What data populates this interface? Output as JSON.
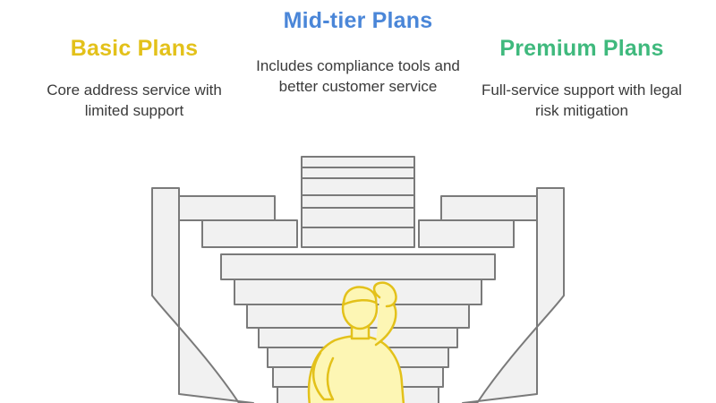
{
  "tiers": {
    "basic": {
      "title": "Basic Plans",
      "description": "Core address service with limited support",
      "color": "#e3c11a"
    },
    "mid": {
      "title": "Mid-tier Plans",
      "description": "Includes compliance tools and better customer service",
      "color": "#4a86d8"
    },
    "premium": {
      "title": "Premium Plans",
      "description": "Full-service support with legal risk mitigation",
      "color": "#3fb97d"
    }
  },
  "illustration": {
    "icon": "staircase-with-thinking-person",
    "stair_fill": "#f1f1f1",
    "stair_stroke": "#7a7a7a",
    "person_fill": "#fdf6b4",
    "person_stroke": "#e3c11a"
  }
}
